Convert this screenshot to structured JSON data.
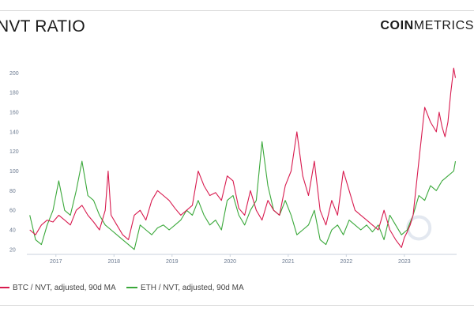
{
  "title": "NVT RATIO",
  "logo": {
    "bold": "COIN",
    "light": "METRICS"
  },
  "colors": {
    "btc": "#d81b4f",
    "eth": "#3aa83a",
    "axis": "#6b7a90",
    "watermark": "#e3e8f0"
  },
  "legend": [
    {
      "label": "BTC / NVT, adjusted, 90d MA",
      "color": "#d81b4f"
    },
    {
      "label": "ETH / NVT, adjusted, 90d MA",
      "color": "#3aa83a"
    }
  ],
  "chart_data": {
    "type": "line",
    "title": "NVT RATIO",
    "xlabel": "",
    "ylabel": "",
    "xlim": [
      2016.5,
      2023.9
    ],
    "ylim": [
      15,
      210
    ],
    "x_ticks": [
      "2017",
      "2018",
      "2019",
      "2020",
      "2021",
      "2022",
      "2023"
    ],
    "y_ticks": [
      20,
      40,
      60,
      80,
      100,
      120,
      140,
      160,
      180,
      200
    ],
    "grid": false,
    "legend_position": "bottom",
    "series": [
      {
        "name": "BTC / NVT, adjusted, 90d MA",
        "color": "#d81b4f",
        "x": [
          2016.55,
          2016.65,
          2016.75,
          2016.85,
          2016.95,
          2017.05,
          2017.15,
          2017.25,
          2017.35,
          2017.45,
          2017.55,
          2017.65,
          2017.75,
          2017.85,
          2017.9,
          2017.95,
          2018.05,
          2018.15,
          2018.25,
          2018.35,
          2018.45,
          2018.55,
          2018.65,
          2018.75,
          2018.85,
          2018.95,
          2019.05,
          2019.15,
          2019.25,
          2019.35,
          2019.45,
          2019.55,
          2019.65,
          2019.75,
          2019.85,
          2019.95,
          2020.05,
          2020.15,
          2020.25,
          2020.35,
          2020.45,
          2020.55,
          2020.65,
          2020.75,
          2020.85,
          2020.95,
          2021.05,
          2021.15,
          2021.25,
          2021.35,
          2021.45,
          2021.55,
          2021.65,
          2021.75,
          2021.85,
          2021.95,
          2022.05,
          2022.15,
          2022.25,
          2022.35,
          2022.45,
          2022.55,
          2022.65,
          2022.75,
          2022.85,
          2022.95,
          2023.0,
          2023.05,
          2023.1,
          2023.15,
          2023.25,
          2023.35,
          2023.45,
          2023.55,
          2023.6,
          2023.65,
          2023.7,
          2023.75,
          2023.8,
          2023.85,
          2023.88
        ],
        "values": [
          40,
          35,
          45,
          50,
          48,
          55,
          50,
          45,
          60,
          65,
          55,
          48,
          40,
          60,
          100,
          55,
          45,
          35,
          30,
          55,
          60,
          50,
          70,
          80,
          75,
          70,
          62,
          55,
          60,
          65,
          100,
          85,
          75,
          78,
          70,
          95,
          90,
          62,
          55,
          80,
          60,
          50,
          70,
          60,
          55,
          85,
          100,
          140,
          95,
          75,
          110,
          60,
          45,
          70,
          55,
          100,
          80,
          60,
          55,
          50,
          45,
          40,
          60,
          40,
          30,
          22,
          32,
          38,
          45,
          55,
          110,
          165,
          150,
          140,
          160,
          145,
          135,
          150,
          180,
          205,
          195
        ]
      },
      {
        "name": "ETH / NVT, adjusted, 90d MA",
        "color": "#3aa83a",
        "x": [
          2016.55,
          2016.65,
          2016.75,
          2016.85,
          2016.95,
          2017.05,
          2017.15,
          2017.25,
          2017.35,
          2017.45,
          2017.55,
          2017.65,
          2017.75,
          2017.85,
          2017.95,
          2018.05,
          2018.15,
          2018.25,
          2018.35,
          2018.45,
          2018.55,
          2018.65,
          2018.75,
          2018.85,
          2018.95,
          2019.05,
          2019.15,
          2019.25,
          2019.35,
          2019.45,
          2019.55,
          2019.65,
          2019.75,
          2019.85,
          2019.95,
          2020.05,
          2020.15,
          2020.25,
          2020.35,
          2020.45,
          2020.55,
          2020.65,
          2020.75,
          2020.85,
          2020.95,
          2021.05,
          2021.15,
          2021.25,
          2021.35,
          2021.45,
          2021.55,
          2021.65,
          2021.75,
          2021.85,
          2021.95,
          2022.05,
          2022.15,
          2022.25,
          2022.35,
          2022.45,
          2022.55,
          2022.65,
          2022.75,
          2022.85,
          2022.95,
          2023.05,
          2023.15,
          2023.25,
          2023.35,
          2023.45,
          2023.55,
          2023.65,
          2023.75,
          2023.85,
          2023.88
        ],
        "values": [
          55,
          30,
          25,
          45,
          60,
          90,
          60,
          55,
          80,
          110,
          75,
          70,
          55,
          45,
          40,
          35,
          30,
          25,
          20,
          45,
          40,
          35,
          42,
          45,
          40,
          45,
          50,
          60,
          55,
          70,
          55,
          45,
          50,
          40,
          70,
          75,
          55,
          45,
          60,
          70,
          130,
          85,
          60,
          55,
          70,
          55,
          35,
          40,
          45,
          60,
          30,
          25,
          40,
          45,
          35,
          50,
          45,
          40,
          45,
          38,
          45,
          30,
          55,
          45,
          35,
          40,
          55,
          75,
          70,
          85,
          80,
          90,
          95,
          100,
          110
        ]
      }
    ]
  }
}
